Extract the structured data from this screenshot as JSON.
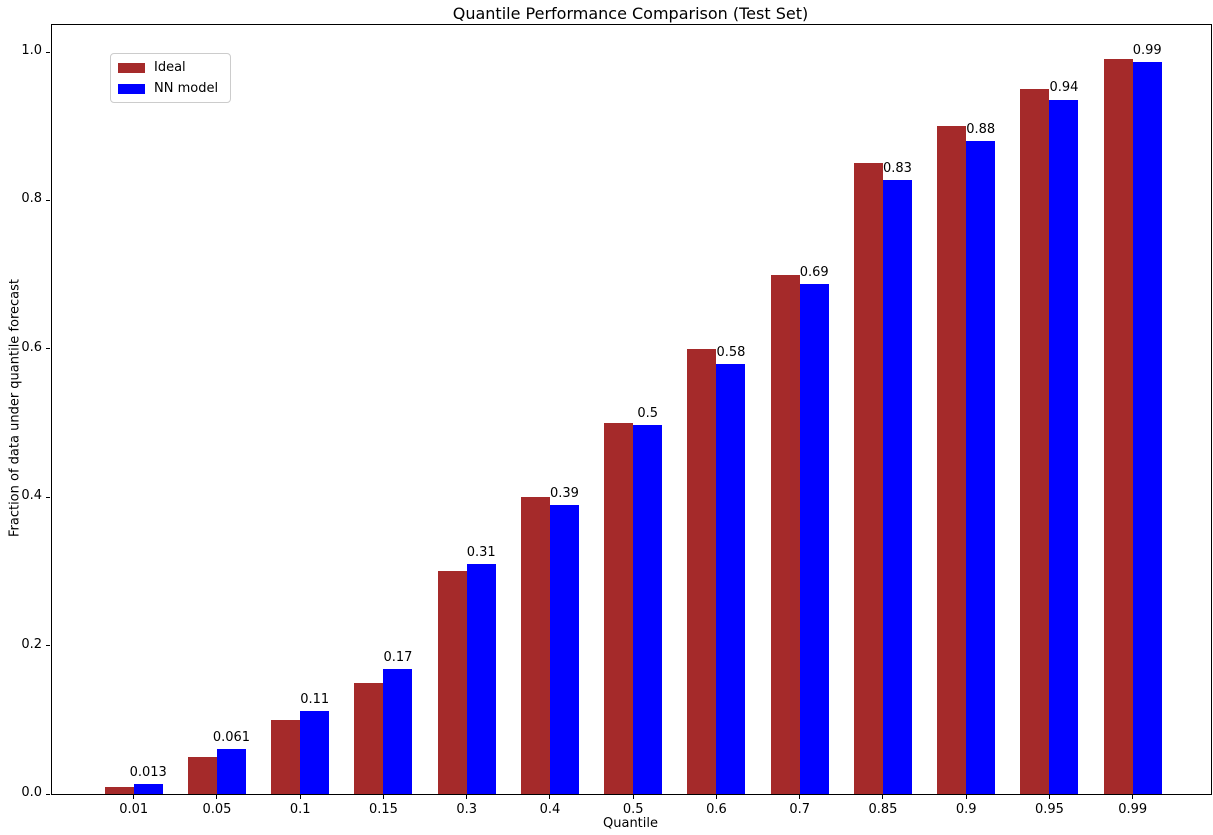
{
  "chart_data": {
    "type": "bar",
    "title": "Quantile Performance Comparison (Test Set)",
    "xlabel": "Quantile",
    "ylabel": "Fraction of data under quantile forecast",
    "categories": [
      "0.01",
      "0.05",
      "0.1",
      "0.15",
      "0.3",
      "0.4",
      "0.5",
      "0.6",
      "0.7",
      "0.85",
      "0.9",
      "0.95",
      "0.99"
    ],
    "series": [
      {
        "name": "Ideal",
        "color": "#A52A2A",
        "values": [
          0.01,
          0.05,
          0.1,
          0.15,
          0.3,
          0.4,
          0.5,
          0.6,
          0.7,
          0.85,
          0.9,
          0.95,
          0.99
        ]
      },
      {
        "name": "NN model",
        "color": "#0000FF",
        "values": [
          0.013,
          0.061,
          0.112,
          0.168,
          0.31,
          0.39,
          0.497,
          0.58,
          0.688,
          0.828,
          0.88,
          0.936,
          0.987
        ],
        "bar_labels": [
          "0.013",
          "0.061",
          "0.11",
          "0.17",
          "0.31",
          "0.39",
          "0.5",
          "0.58",
          "0.69",
          "0.83",
          "0.88",
          "0.94",
          "0.99"
        ]
      }
    ],
    "ylim": [
      0.0,
      1.036
    ],
    "yticks": [
      "0.0",
      "0.2",
      "0.4",
      "0.6",
      "0.8",
      "1.0"
    ],
    "grid": false,
    "legend_position": "upper left",
    "axis_color": "#000000",
    "background_color": "#ffffff"
  }
}
